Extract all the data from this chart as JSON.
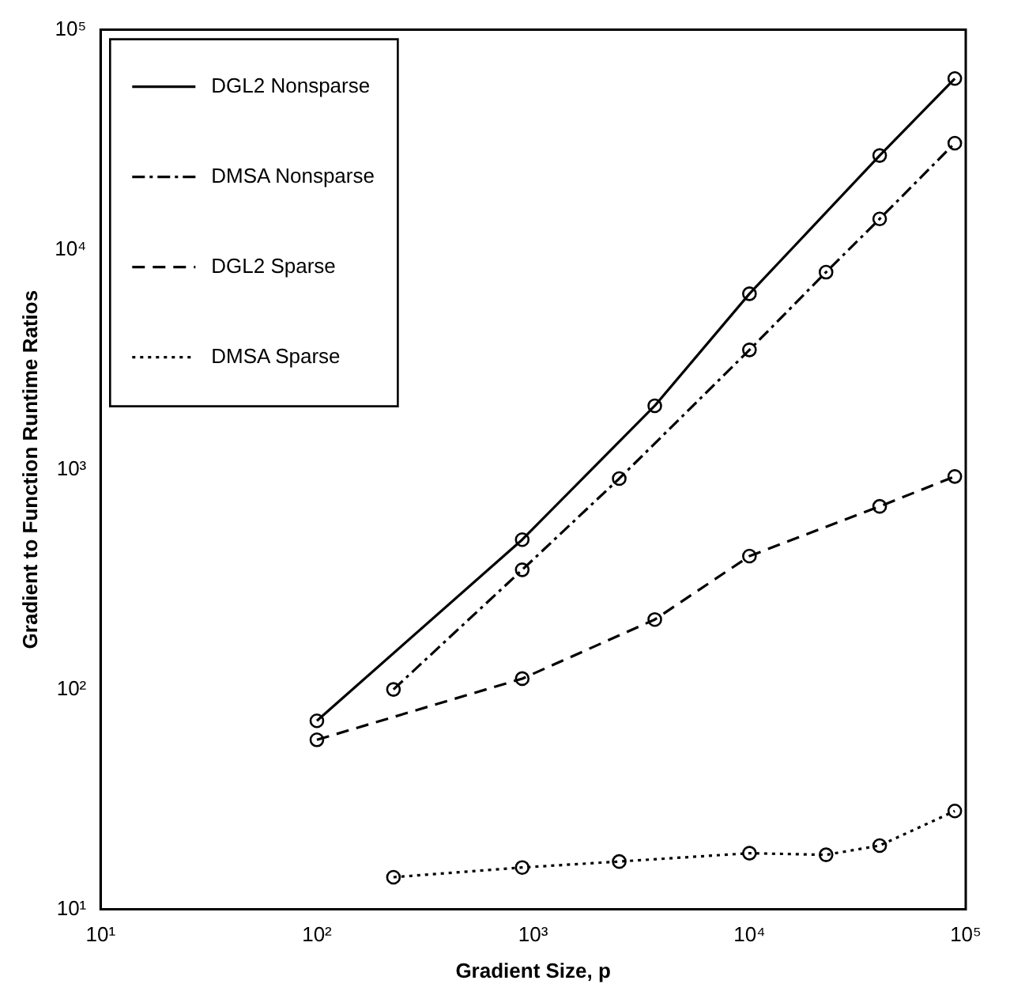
{
  "chart_data": {
    "type": "line",
    "xlabel": "Gradient Size, p",
    "ylabel": "Gradient to Function Runtime Ratios",
    "log": "xy",
    "xlim": [
      10,
      100000
    ],
    "ylim": [
      10,
      100000
    ],
    "xticks": [
      {
        "value": 10,
        "label": "10¹"
      },
      {
        "value": 100,
        "label": "10²"
      },
      {
        "value": 1000,
        "label": "10³"
      },
      {
        "value": 10000,
        "label": "10⁴"
      },
      {
        "value": 100000,
        "label": "10⁵"
      }
    ],
    "yticks": [
      {
        "value": 10,
        "label": "10¹"
      },
      {
        "value": 100,
        "label": "10²"
      },
      {
        "value": 1000,
        "label": "10³"
      },
      {
        "value": 10000,
        "label": "10⁴"
      },
      {
        "value": 100000,
        "label": "10⁵"
      }
    ],
    "grid": false,
    "legend": "top left",
    "marker": "circle",
    "series": [
      {
        "name": "DGL2 Nonsparse",
        "color": "#000000",
        "line_style": "solid",
        "x": [
          100,
          890,
          3650,
          10000,
          40000,
          89000
        ],
        "values": [
          72,
          480,
          1950,
          6300,
          26800,
          60000
        ]
      },
      {
        "name": "DMSA Nonsparse",
        "color": "#000000",
        "line_style": "dashdot",
        "x": [
          226,
          890,
          2500,
          10000,
          22600,
          40000,
          89000
        ],
        "values": [
          100,
          350,
          910,
          3500,
          7900,
          13800,
          30500
        ]
      },
      {
        "name": "DGL2 Sparse",
        "color": "#000000",
        "line_style": "dashed",
        "x": [
          100,
          890,
          3650,
          10000,
          40000,
          89000
        ],
        "values": [
          59,
          112,
          208,
          404,
          680,
          930
        ]
      },
      {
        "name": "DMSA Sparse",
        "color": "#000000",
        "line_style": "dotted",
        "x": [
          226,
          890,
          2500,
          10000,
          22600,
          40000,
          89000
        ],
        "values": [
          14,
          15.5,
          16.5,
          18,
          17.7,
          19.5,
          28
        ]
      }
    ]
  }
}
